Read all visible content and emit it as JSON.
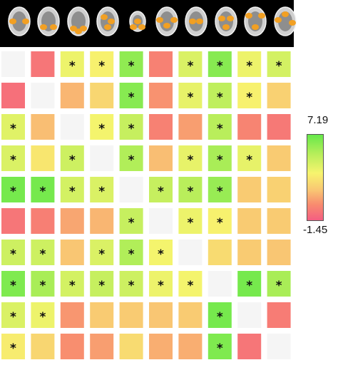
{
  "figure": {
    "brain_slices": [
      "brain-slice-icon",
      "brain-slice-icon",
      "brain-slice-icon",
      "brain-slice-icon",
      "brain-slice-icon",
      "brain-slice-icon",
      "brain-slice-icon",
      "brain-slice-icon",
      "brain-slice-icon",
      "brain-slice-icon"
    ],
    "colors": {
      "min": "#f45e82",
      "max": "#66e84a",
      "diagonal": "#f5f5f5",
      "brain_background": "#000000",
      "activation": "#f2a023"
    }
  },
  "chart_data": {
    "type": "heatmap",
    "rows": 10,
    "cols": 10,
    "colorbar": {
      "max_label": "7.19",
      "min_label": "-1.45",
      "range": [
        -1.45,
        7.19
      ]
    },
    "cell_mark": "*",
    "values": [
      [
        null,
        -0.6,
        3.6,
        3.2,
        6.2,
        -0.2,
        4.2,
        6.4,
        3.6,
        4.4
      ],
      [
        -0.8,
        null,
        1.2,
        2.2,
        6.4,
        0.3,
        3.8,
        5.0,
        3.2,
        2.0
      ],
      [
        4.0,
        1.4,
        null,
        3.4,
        4.8,
        -0.2,
        0.6,
        5.2,
        -0.1,
        -0.5
      ],
      [
        4.2,
        2.8,
        4.6,
        null,
        5.4,
        1.4,
        3.8,
        5.6,
        3.8,
        1.8
      ],
      [
        6.8,
        6.8,
        4.4,
        4.2,
        null,
        4.8,
        5.2,
        6.0,
        1.8,
        2.0
      ],
      [
        -0.6,
        -0.3,
        0.8,
        1.2,
        4.8,
        null,
        3.6,
        3.2,
        1.8,
        1.8
      ],
      [
        4.6,
        4.6,
        1.6,
        4.2,
        5.4,
        3.4,
        null,
        2.4,
        1.8,
        1.6
      ],
      [
        6.6,
        5.6,
        4.4,
        4.8,
        4.6,
        3.6,
        3.4,
        null,
        6.8,
        5.6
      ],
      [
        4.2,
        3.6,
        0.4,
        1.8,
        1.8,
        1.6,
        1.8,
        6.8,
        null,
        -0.4
      ],
      [
        3.0,
        2.2,
        0.2,
        0.6,
        2.4,
        1.0,
        1.0,
        6.6,
        -0.6,
        null
      ]
    ],
    "significant": [
      [
        false,
        false,
        true,
        true,
        true,
        false,
        true,
        true,
        true,
        true
      ],
      [
        false,
        false,
        false,
        false,
        true,
        false,
        true,
        true,
        true,
        false
      ],
      [
        true,
        false,
        false,
        true,
        true,
        false,
        false,
        true,
        false,
        false
      ],
      [
        true,
        false,
        true,
        false,
        true,
        false,
        true,
        true,
        true,
        false
      ],
      [
        true,
        true,
        true,
        true,
        false,
        true,
        true,
        true,
        false,
        false
      ],
      [
        false,
        false,
        false,
        false,
        true,
        false,
        true,
        true,
        false,
        false
      ],
      [
        true,
        true,
        false,
        true,
        true,
        true,
        false,
        false,
        false,
        false
      ],
      [
        true,
        true,
        true,
        true,
        true,
        true,
        true,
        false,
        true,
        true
      ],
      [
        true,
        true,
        false,
        false,
        false,
        false,
        false,
        true,
        false,
        false
      ],
      [
        true,
        false,
        false,
        false,
        false,
        false,
        false,
        true,
        false,
        false
      ]
    ]
  }
}
